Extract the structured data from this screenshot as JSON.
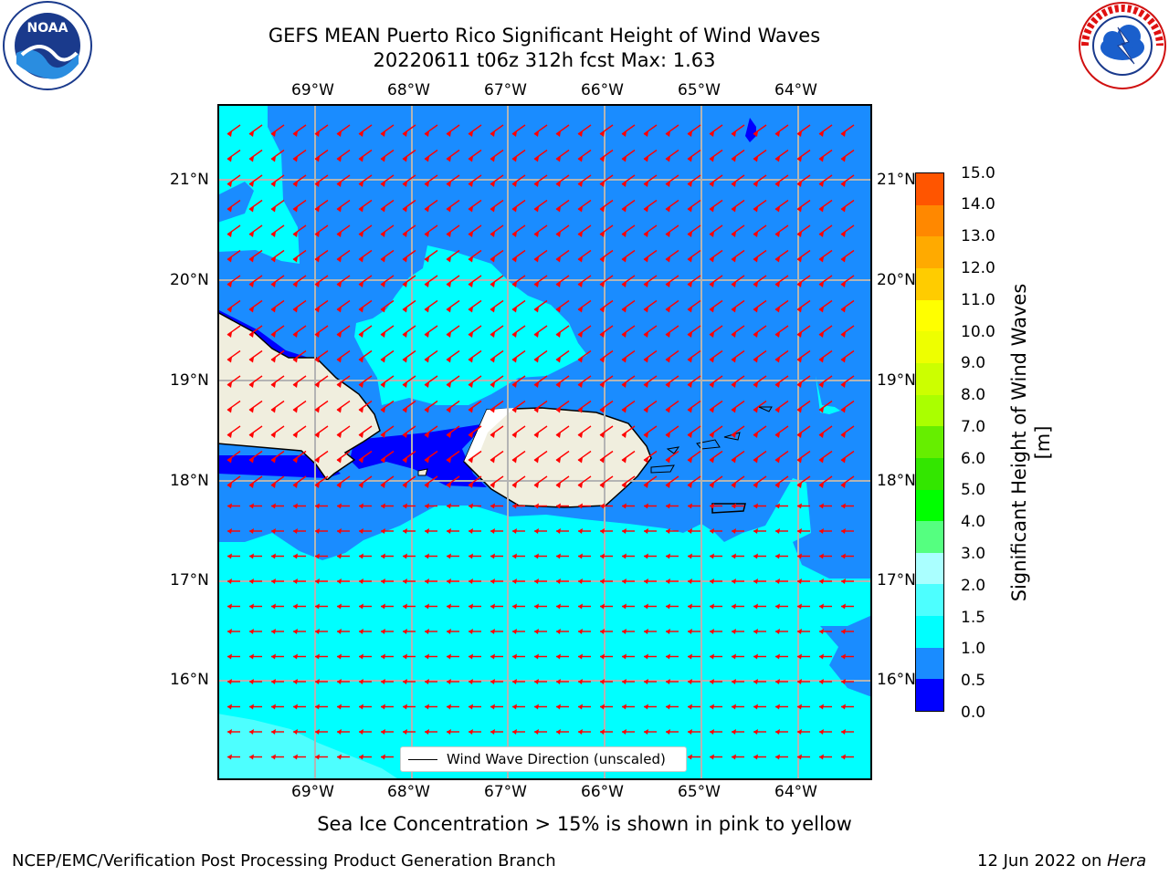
{
  "title": {
    "line1": "GEFS MEAN Puerto Rico Significant Height of Wind Waves",
    "line2": "20220611 t06z 312h fcst   Max: 1.63"
  },
  "logos": {
    "noaa_text": "NOAA",
    "nws_text": "NATIONAL WEATHER SERVICE"
  },
  "map": {
    "lon_labels": [
      "69°W",
      "68°W",
      "67°W",
      "66°W",
      "65°W",
      "64°W"
    ],
    "lat_labels": [
      "21°N",
      "20°N",
      "19°N",
      "18°N",
      "17°N",
      "16°N"
    ],
    "legend_label": "Wind Wave Direction (unscaled)",
    "colors": {
      "ocean_low": "#1a8cff",
      "ocean_mid": "#00ffff",
      "ocean_high": "#4dffff",
      "very_low": "#0000ff",
      "land": "#f0eede",
      "arrow": "#ff0000",
      "grid": "#b4b4b4"
    }
  },
  "colorbar": {
    "label": "Significant Height of Wind Waves [m]",
    "ticks": [
      "15.0",
      "14.0",
      "13.0",
      "12.0",
      "11.0",
      "10.0",
      "9.0",
      "8.0",
      "7.0",
      "6.0",
      "5.0",
      "4.0",
      "3.0",
      "2.0",
      "1.5",
      "1.0",
      "0.5",
      "0.0"
    ],
    "colors": [
      "#0000ff",
      "#1a8cff",
      "#00ffff",
      "#4dffff",
      "#aaffff",
      "#55ff80",
      "#00ff00",
      "#33e600",
      "#66ee00",
      "#aaff00",
      "#ccff00",
      "#eeff00",
      "#ffff00",
      "#ffcc00",
      "#ffaa00",
      "#ff8800",
      "#ff5500",
      "#ff2200",
      "#ff0000"
    ]
  },
  "footer": {
    "sea_ice_note": "Sea Ice Concentration > 15% is shown in pink to yellow",
    "branch": "NCEP/EMC/Verification Post Processing Product Generation Branch",
    "date_prefix": "12 Jun 2022 on ",
    "host": "Hera"
  }
}
